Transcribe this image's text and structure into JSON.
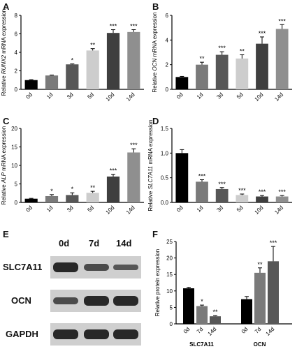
{
  "panel_letters": [
    "A",
    "B",
    "C",
    "D",
    "E",
    "F"
  ],
  "chart_data": [
    {
      "panel": "A",
      "type": "bar",
      "categories": [
        "0d",
        "1d",
        "3d",
        "5d",
        "10d",
        "14d"
      ],
      "values": [
        1.0,
        1.5,
        2.7,
        4.2,
        6.1,
        6.2
      ],
      "errors": [
        0.05,
        0.05,
        0.05,
        0.2,
        0.35,
        0.25
      ],
      "significance": [
        "",
        "",
        "*",
        "**",
        "***",
        "***"
      ],
      "colors": [
        "#000000",
        "#7a7a7a",
        "#575757",
        "#cdcdcd",
        "#3f3f3f",
        "#8f8f8f"
      ],
      "ylabel_pre": "Relative ",
      "ylabel_gene": "RUNX2",
      "ylabel_post": " mRNA expression",
      "ylim": [
        0,
        8
      ],
      "yticks": [
        0,
        2,
        4,
        6,
        8
      ],
      "ytick_labels": [
        "0",
        "2",
        "4",
        "6",
        "8"
      ]
    },
    {
      "panel": "B",
      "type": "bar",
      "categories": [
        "0d",
        "1d",
        "3d",
        "5d",
        "10d",
        "14d"
      ],
      "values": [
        1.0,
        2.0,
        2.8,
        2.5,
        3.7,
        4.9
      ],
      "errors": [
        0.05,
        0.2,
        0.25,
        0.3,
        0.55,
        0.35
      ],
      "significance": [
        "",
        "**",
        "***",
        "**",
        "***",
        "***"
      ],
      "colors": [
        "#000000",
        "#7a7a7a",
        "#575757",
        "#cdcdcd",
        "#3f3f3f",
        "#8f8f8f"
      ],
      "ylabel_pre": "Relative ",
      "ylabel_gene": "OCN",
      "ylabel_post": " mRNA expression",
      "ylim": [
        0,
        6
      ],
      "yticks": [
        0,
        2,
        4,
        6
      ],
      "ytick_labels": [
        "0",
        "2",
        "4",
        "6"
      ]
    },
    {
      "panel": "C",
      "type": "bar",
      "categories": [
        "0d",
        "1d",
        "3d",
        "5d",
        "10d",
        "14d"
      ],
      "values": [
        1.0,
        1.7,
        2.0,
        2.6,
        7.0,
        13.5
      ],
      "errors": [
        0.1,
        0.4,
        0.6,
        0.4,
        0.6,
        1.0
      ],
      "significance": [
        "",
        "*",
        "*",
        "**",
        "***",
        "***"
      ],
      "colors": [
        "#000000",
        "#7a7a7a",
        "#575757",
        "#cdcdcd",
        "#3f3f3f",
        "#8f8f8f"
      ],
      "ylabel_pre": "Relative ",
      "ylabel_gene": "ALP",
      "ylabel_post": " mRNA expression",
      "ylim": [
        0,
        20
      ],
      "yticks": [
        0,
        5,
        10,
        15,
        20
      ],
      "ytick_labels": [
        "0",
        "5",
        "10",
        "15",
        "20"
      ]
    },
    {
      "panel": "D",
      "type": "bar",
      "categories": [
        "0d",
        "1d",
        "3d",
        "5d",
        "10d",
        "14d"
      ],
      "values": [
        1.0,
        0.42,
        0.27,
        0.15,
        0.12,
        0.12
      ],
      "errors": [
        0.07,
        0.04,
        0.03,
        0.02,
        0.02,
        0.02
      ],
      "significance": [
        "",
        "***",
        "***",
        "***",
        "***",
        "***"
      ],
      "colors": [
        "#000000",
        "#7a7a7a",
        "#575757",
        "#cdcdcd",
        "#3f3f3f",
        "#8f8f8f"
      ],
      "ylabel_pre": "Relative ",
      "ylabel_gene": "SLC7A11",
      "ylabel_post": " mRNA expression",
      "ylim": [
        0,
        1.5
      ],
      "yticks": [
        0,
        0.5,
        1.0,
        1.5
      ],
      "ytick_labels": [
        "0.0",
        "0.5",
        "1.0",
        "1.5"
      ]
    },
    {
      "panel": "F",
      "type": "bar",
      "groups": [
        "SLC7A11",
        "OCN"
      ],
      "categories": [
        "0d",
        "7d",
        "14d"
      ],
      "series": [
        {
          "group": "SLC7A11",
          "values": [
            10.8,
            5.4,
            2.3
          ],
          "errors": [
            0.3,
            0.3,
            0.2
          ],
          "significance": [
            "",
            "*",
            "**"
          ]
        },
        {
          "group": "OCN",
          "values": [
            7.5,
            15.5,
            19.0
          ],
          "errors": [
            0.8,
            1.5,
            4.5
          ],
          "significance": [
            "",
            "**",
            "***"
          ]
        }
      ],
      "colors": [
        "#000000",
        "#7a7a7a",
        "#575757"
      ],
      "ylabel": "Relative protein expression",
      "ylim": [
        0,
        25
      ],
      "yticks": [
        0,
        5,
        10,
        15,
        20,
        25
      ],
      "ytick_labels": [
        "0",
        "5",
        "10",
        "15",
        "20",
        "25"
      ]
    }
  ],
  "western_blot": {
    "lanes": [
      "0d",
      "7d",
      "14d"
    ],
    "rows": [
      {
        "label": "SLC7A11",
        "intensity": [
          1.0,
          0.5,
          0.35
        ]
      },
      {
        "label": "OCN",
        "intensity": [
          0.5,
          1.0,
          1.0
        ]
      },
      {
        "label": "GAPDH",
        "intensity": [
          1.0,
          1.0,
          1.0
        ]
      }
    ]
  }
}
